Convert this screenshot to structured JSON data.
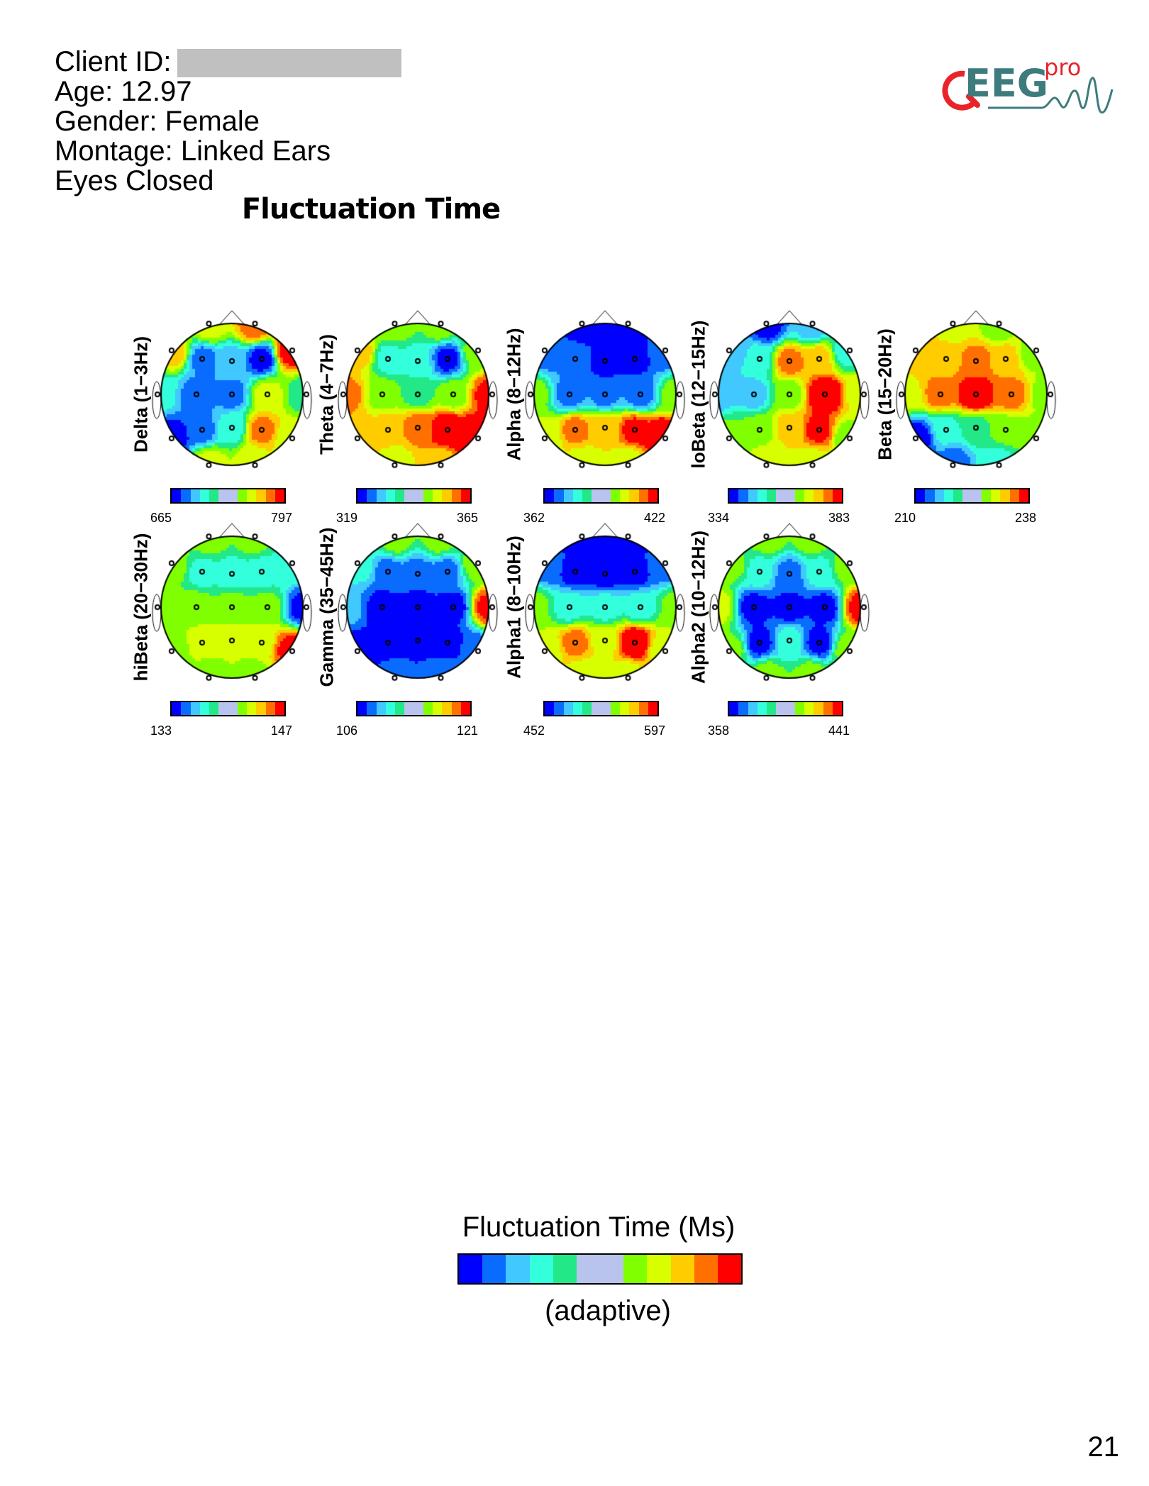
{
  "header": {
    "client_id_label": "Client ID:",
    "age": "Age: 12.97",
    "gender": "Gender: Female",
    "montage": "Montage: Linked Ears",
    "condition": "Eyes Closed"
  },
  "title": "Fluctuation Time",
  "logo": {
    "text": "QEEGpro",
    "red": "#e8242a",
    "teal": "#3e7b7d"
  },
  "palette": [
    "#0000ff",
    "#0a6cff",
    "#40c8ff",
    "#33ffdd",
    "#22e888",
    "#b8c4ee",
    "#80ff00",
    "#d8ff00",
    "#ffcc00",
    "#ff7000",
    "#ff0000"
  ],
  "map_palette": [
    "#0000ff",
    "#0a6cff",
    "#40c8ff",
    "#33ffdd",
    "#22e888",
    "#80ff00",
    "#d8ff00",
    "#ffcc00",
    "#ff7000",
    "#ff0000",
    "#ff0000"
  ],
  "electrodes": [
    "Fp1",
    "Fp2",
    "F7",
    "F3",
    "Fz",
    "F4",
    "F8",
    "T3",
    "C3",
    "Cz",
    "C4",
    "T4",
    "T5",
    "P3",
    "Pz",
    "P4",
    "T6",
    "O1",
    "O2"
  ],
  "maps": [
    {
      "label": "Delta (1−3Hz)",
      "min": "665",
      "max": "797",
      "levels": [
        6,
        8,
        7,
        1,
        2,
        0,
        9,
        3,
        1,
        1,
        6,
        4,
        0,
        1,
        3,
        8,
        6,
        6,
        6
      ]
    },
    {
      "label": "Theta (4−7Hz)",
      "min": "319",
      "max": "365",
      "levels": [
        5,
        5,
        7,
        3,
        3,
        0,
        5,
        8,
        5,
        4,
        5,
        9,
        7,
        7,
        8,
        10,
        10,
        6,
        7
      ]
    },
    {
      "label": "Alpha (8−12Hz)",
      "min": "362",
      "max": "422",
      "levels": [
        0,
        0,
        1,
        1,
        0,
        0,
        1,
        5,
        1,
        1,
        1,
        5,
        6,
        8,
        7,
        9,
        10,
        6,
        6
      ]
    },
    {
      "label": "loBeta (12−15Hz)",
      "min": "334",
      "max": "383",
      "levels": [
        0,
        2,
        2,
        3,
        8,
        7,
        3,
        2,
        2,
        5,
        10,
        6,
        5,
        5,
        7,
        9,
        5,
        6,
        6
      ]
    },
    {
      "label": "Beta (15−20Hz)",
      "min": "210",
      "max": "238",
      "levels": [
        6,
        5,
        7,
        7,
        8,
        7,
        5,
        6,
        8,
        10,
        8,
        5,
        0,
        3,
        4,
        5,
        5,
        1,
        3
      ]
    },
    {
      "label": "hiBeta (20−30Hz)",
      "min": "133",
      "max": "147",
      "levels": [
        5,
        5,
        5,
        3,
        3,
        3,
        3,
        5,
        5,
        5,
        5,
        0,
        5,
        6,
        6,
        6,
        9,
        5,
        5
      ]
    },
    {
      "label": "Gamma (35−45Hz)",
      "min": "106",
      "max": "121",
      "levels": [
        5,
        5,
        3,
        1,
        1,
        1,
        5,
        2,
        0,
        0,
        0,
        9,
        0,
        0,
        0,
        0,
        1,
        1,
        1
      ]
    },
    {
      "label": "Alpha1 (8−10Hz)",
      "min": "452",
      "max": "597",
      "levels": [
        0,
        0,
        1,
        0,
        0,
        0,
        1,
        5,
        3,
        3,
        3,
        5,
        6,
        8,
        6,
        10,
        6,
        6,
        6
      ]
    },
    {
      "label": "Alpha2 (10−12Hz)",
      "min": "358",
      "max": "441",
      "levels": [
        5,
        5,
        5,
        3,
        1,
        3,
        5,
        6,
        0,
        0,
        0,
        9,
        5,
        0,
        3,
        0,
        5,
        5,
        5
      ]
    }
  ],
  "legend": {
    "title": "Fluctuation Time (Ms)",
    "subtitle": "(adaptive)"
  },
  "page_number": "21"
}
